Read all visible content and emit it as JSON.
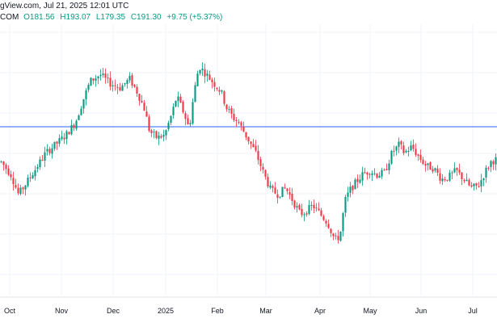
{
  "header": {
    "source": "gView.com, Jul 21, 2025 12:01 UTC",
    "symbol": "COM",
    "open": "O181.56",
    "high": "H193.07",
    "low": "L179.35",
    "close": "C191.30",
    "change": "+9.75 (+5.37%)"
  },
  "colors": {
    "up": "#089981",
    "down": "#f23645",
    "horizontal_line": "#2962ff",
    "grid": "#f0f3fa",
    "axis_text": "#131722"
  },
  "chart_data": {
    "type": "candlestick",
    "horizontal_line_level": "resistance (price level, not labeled)",
    "x_ticks": [
      "Oct",
      "Nov",
      "Dec",
      "2025",
      "Feb",
      "Mar",
      "Apr",
      "May",
      "Jun",
      "Jul"
    ],
    "grid": true,
    "path_normalized_price": [
      [
        0,
        0.48
      ],
      [
        0.02,
        0.42
      ],
      [
        0.035,
        0.33
      ],
      [
        0.05,
        0.38
      ],
      [
        0.07,
        0.45
      ],
      [
        0.09,
        0.52
      ],
      [
        0.11,
        0.56
      ],
      [
        0.13,
        0.6
      ],
      [
        0.15,
        0.66
      ],
      [
        0.165,
        0.76
      ],
      [
        0.18,
        0.85
      ],
      [
        0.2,
        0.88
      ],
      [
        0.22,
        0.84
      ],
      [
        0.24,
        0.82
      ],
      [
        0.26,
        0.86
      ],
      [
        0.275,
        0.8
      ],
      [
        0.29,
        0.72
      ],
      [
        0.3,
        0.62
      ],
      [
        0.315,
        0.59
      ],
      [
        0.33,
        0.6
      ],
      [
        0.345,
        0.7
      ],
      [
        0.355,
        0.78
      ],
      [
        0.37,
        0.7
      ],
      [
        0.38,
        0.63
      ],
      [
        0.39,
        0.8
      ],
      [
        0.4,
        0.92
      ],
      [
        0.415,
        0.88
      ],
      [
        0.43,
        0.84
      ],
      [
        0.445,
        0.8
      ],
      [
        0.455,
        0.73
      ],
      [
        0.47,
        0.68
      ],
      [
        0.48,
        0.66
      ],
      [
        0.49,
        0.62
      ],
      [
        0.5,
        0.58
      ],
      [
        0.515,
        0.52
      ],
      [
        0.53,
        0.43
      ],
      [
        0.545,
        0.35
      ],
      [
        0.56,
        0.33
      ],
      [
        0.575,
        0.36
      ],
      [
        0.59,
        0.3
      ],
      [
        0.605,
        0.24
      ],
      [
        0.615,
        0.25
      ],
      [
        0.63,
        0.28
      ],
      [
        0.645,
        0.24
      ],
      [
        0.66,
        0.2
      ],
      [
        0.675,
        0.12
      ],
      [
        0.685,
        0.14
      ],
      [
        0.695,
        0.3
      ],
      [
        0.705,
        0.35
      ],
      [
        0.715,
        0.38
      ],
      [
        0.73,
        0.42
      ],
      [
        0.745,
        0.44
      ],
      [
        0.76,
        0.42
      ],
      [
        0.775,
        0.43
      ],
      [
        0.79,
        0.52
      ],
      [
        0.805,
        0.56
      ],
      [
        0.815,
        0.52
      ],
      [
        0.83,
        0.55
      ],
      [
        0.845,
        0.5
      ],
      [
        0.86,
        0.46
      ],
      [
        0.875,
        0.45
      ],
      [
        0.89,
        0.4
      ],
      [
        0.905,
        0.41
      ],
      [
        0.92,
        0.44
      ],
      [
        0.935,
        0.4
      ],
      [
        0.95,
        0.36
      ],
      [
        0.965,
        0.37
      ],
      [
        0.98,
        0.44
      ],
      [
        0.99,
        0.48
      ],
      [
        1.0,
        0.49
      ]
    ]
  }
}
